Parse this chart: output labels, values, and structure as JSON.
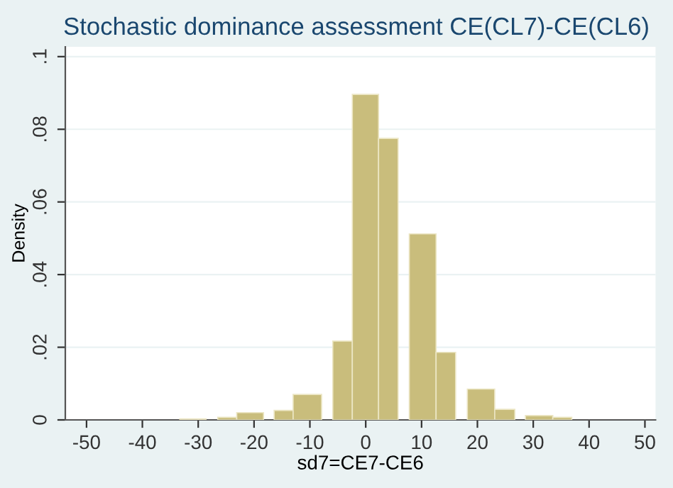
{
  "chart_data": {
    "type": "histogram",
    "title": "Stochastic dominance assessment CE(CL7)-CE(CL6)",
    "xlabel": "sd7=CE7-CE6",
    "ylabel": "Density",
    "bins": [
      -33.3,
      -28.6,
      -26.5,
      -23.1,
      -18.3,
      -16.4,
      -13,
      -7.9,
      -5.9,
      -2.4,
      2.3,
      5.8,
      7.8,
      12.6,
      16.1,
      18.2,
      23.1,
      26.7,
      28.6,
      33.5,
      36.9
    ],
    "values": [
      0.0003,
      0,
      0.0007,
      0.002,
      0,
      0.0026,
      0.007,
      0,
      0.0217,
      0.0896,
      0.0775,
      0,
      0.0512,
      0.0186,
      0,
      0.0085,
      0.0029,
      0,
      0.0012,
      0.0007
    ],
    "color": "#c9bd7c",
    "xlim": [
      -53.8,
      51.9
    ],
    "ylim": [
      0,
      0.1027
    ],
    "xticks": [
      -50,
      -40,
      -30,
      -20,
      -10,
      0,
      10,
      20,
      30,
      40,
      50
    ],
    "yticks": [
      {
        "value": 0,
        "label": "0"
      },
      {
        "value": 0.02,
        "label": ".02"
      },
      {
        "value": 0.04,
        "label": ".04"
      },
      {
        "value": 0.06,
        "label": ".06"
      },
      {
        "value": 0.08,
        "label": ".08"
      },
      {
        "value": 0.1,
        "label": ".1"
      }
    ],
    "grid": "y"
  }
}
